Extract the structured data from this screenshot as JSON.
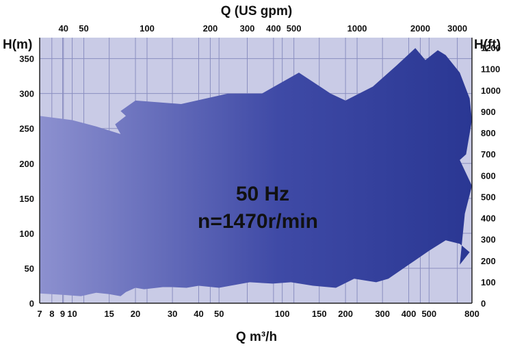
{
  "chart_data": {
    "type": "area",
    "title": "",
    "bottom_axis": {
      "label": "Q m³/h",
      "scale": "log",
      "range": [
        7,
        800
      ],
      "ticks": [
        7,
        8,
        9,
        10,
        15,
        20,
        30,
        40,
        50,
        100,
        150,
        200,
        300,
        400,
        500,
        800
      ]
    },
    "top_axis": {
      "label": "Q (US gpm)",
      "scale": "log",
      "ticks": [
        40,
        50,
        100,
        200,
        300,
        400,
        500,
        1000,
        2000,
        3000
      ]
    },
    "left_axis": {
      "label": "H(m)",
      "range": [
        0,
        380
      ],
      "ticks": [
        0,
        50,
        100,
        150,
        200,
        250,
        300,
        350
      ]
    },
    "right_axis": {
      "label": "H(ft)",
      "ticks": [
        0,
        100,
        200,
        300,
        400,
        500,
        600,
        700,
        800,
        900,
        1000,
        1100,
        1200
      ]
    },
    "grid": true,
    "annotations": [
      "50 Hz",
      "n=1470r/min"
    ],
    "series": [
      {
        "points": [
          [
            7,
            14
          ],
          [
            9,
            12
          ],
          [
            11,
            10
          ],
          [
            13,
            15
          ],
          [
            15,
            13
          ],
          [
            17,
            10
          ],
          [
            18,
            16
          ],
          [
            20,
            22
          ],
          [
            22,
            20
          ],
          [
            27,
            23
          ],
          [
            30,
            23
          ],
          [
            35,
            22
          ],
          [
            40,
            25
          ],
          [
            50,
            22
          ],
          [
            70,
            30
          ],
          [
            90,
            28
          ],
          [
            110,
            30
          ],
          [
            140,
            25
          ],
          [
            180,
            22
          ],
          [
            220,
            35
          ],
          [
            280,
            30
          ],
          [
            320,
            35
          ],
          [
            400,
            55
          ],
          [
            500,
            75
          ],
          [
            600,
            90
          ],
          [
            700,
            85
          ],
          [
            780,
            73
          ],
          [
            700,
            55
          ],
          [
            740,
            128
          ],
          [
            800,
            168
          ],
          [
            700,
            205
          ],
          [
            750,
            213
          ],
          [
            800,
            262
          ],
          [
            780,
            293
          ],
          [
            700,
            330
          ],
          [
            600,
            355
          ],
          [
            550,
            362
          ],
          [
            480,
            348
          ],
          [
            430,
            365
          ],
          [
            350,
            340
          ],
          [
            270,
            310
          ],
          [
            200,
            290
          ],
          [
            170,
            300
          ],
          [
            120,
            330
          ],
          [
            80,
            300
          ],
          [
            55,
            300
          ],
          [
            33,
            285
          ],
          [
            20,
            290
          ],
          [
            17,
            275
          ],
          [
            18,
            268
          ],
          [
            16,
            256
          ],
          [
            17,
            242
          ],
          [
            13,
            253
          ],
          [
            10,
            262
          ],
          [
            7,
            268
          ]
        ]
      }
    ]
  }
}
